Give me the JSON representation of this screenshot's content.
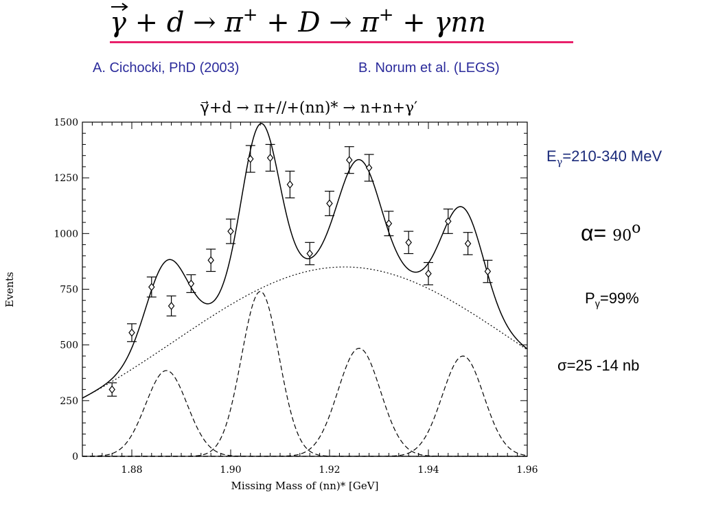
{
  "header": {
    "reaction_gamma": "γ",
    "reaction_rest": " + d → π",
    "reaction_plus1": "+",
    "reaction_mid": " + D → π",
    "reaction_plus2": "+",
    "reaction_end": " + γnn",
    "citation_left": "A. Cichocki, PhD (2003)",
    "citation_right": "B. Norum et al. (LEGS)",
    "underline_color": "#e8206a"
  },
  "annotations": {
    "energy_label": "E",
    "energy_sub": "γ",
    "energy_value": "=210-340 MeV",
    "alpha_symbol": "α",
    "alpha_eq": "=",
    "alpha_value": "90",
    "alpha_unit": "o",
    "pol_label": "P",
    "pol_sub": "γ",
    "pol_value": "=99%",
    "sigma_symbol": "σ",
    "sigma_value": "=25 -14 nb",
    "energy_color": "#1a2a7a"
  },
  "chart_data": {
    "type": "scatter",
    "title": "γ⃗+d → π+//+(nn)* → n+n+γ′",
    "xlabel": "Missing Mass of (nn)* [GeV]",
    "ylabel": "Events",
    "xlim": [
      1.87,
      1.96
    ],
    "ylim": [
      0,
      1500
    ],
    "x_ticks": [
      "1.88",
      "1.90",
      "1.92",
      "1.94",
      "1.96"
    ],
    "y_ticks": [
      "0",
      "250",
      "500",
      "750",
      "1000",
      "1250",
      "1500"
    ],
    "data_points": {
      "x": [
        1.876,
        1.88,
        1.884,
        1.888,
        1.892,
        1.896,
        1.9,
        1.904,
        1.908,
        1.912,
        1.916,
        1.92,
        1.924,
        1.928,
        1.932,
        1.936,
        1.94,
        1.944,
        1.948,
        1.952
      ],
      "y": [
        300,
        555,
        760,
        675,
        775,
        880,
        1010,
        1335,
        1340,
        1220,
        910,
        1135,
        1330,
        1295,
        1045,
        960,
        820,
        1055,
        955,
        830
      ],
      "err": [
        30,
        40,
        45,
        45,
        40,
        50,
        55,
        60,
        60,
        60,
        50,
        55,
        60,
        60,
        55,
        50,
        50,
        55,
        50,
        50
      ]
    },
    "peaks": [
      {
        "center": 1.887,
        "amplitude": 385,
        "sigma": 0.0042
      },
      {
        "center": 1.906,
        "amplitude": 740,
        "sigma": 0.0038
      },
      {
        "center": 1.926,
        "amplitude": 485,
        "sigma": 0.0043
      },
      {
        "center": 1.947,
        "amplitude": 450,
        "sigma": 0.0042
      }
    ],
    "background": {
      "center": 1.923,
      "amplitude": 850,
      "sigma": 0.0345
    },
    "series": [
      {
        "name": "",
        "style": "points with error bars"
      },
      {
        "name": "",
        "style": "solid total fit"
      },
      {
        "name": "",
        "style": "dotted background"
      },
      {
        "name": "",
        "style": "dashed peak components"
      }
    ]
  }
}
